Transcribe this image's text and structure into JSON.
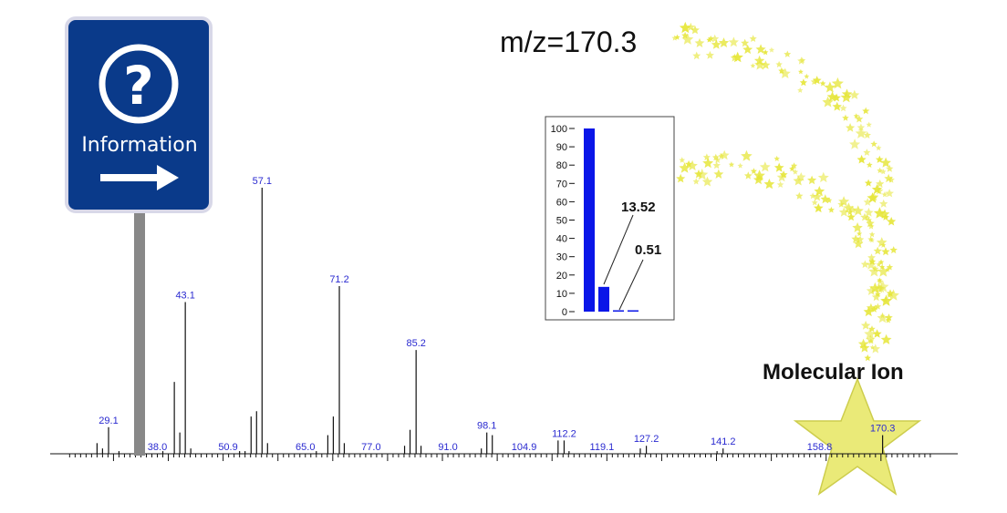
{
  "title": "m/z=170.3",
  "annotation": "Molecular Ion",
  "sign": {
    "text": "Information",
    "question_mark": "?"
  },
  "colors": {
    "peak": "#111111",
    "label": "#2a2ad0",
    "sign_bg": "#0a3a8a",
    "star": "#e6e63a",
    "inset_bar": "#0a16e8"
  },
  "chart_data": [
    {
      "type": "bar",
      "title": "",
      "xlabel": "",
      "ylabel": "",
      "xlim": [
        21,
        180
      ],
      "ylim": [
        0,
        100
      ],
      "peaks": [
        {
          "mz": 27.0,
          "intensity": 4
        },
        {
          "mz": 28.0,
          "intensity": 2
        },
        {
          "mz": 29.1,
          "intensity": 10,
          "label": "29.1"
        },
        {
          "mz": 31.0,
          "intensity": 1
        },
        {
          "mz": 39.0,
          "intensity": 1
        },
        {
          "mz": 41.1,
          "intensity": 27
        },
        {
          "mz": 42.1,
          "intensity": 8
        },
        {
          "mz": 43.1,
          "intensity": 57,
          "label": "43.1"
        },
        {
          "mz": 44.1,
          "intensity": 2
        },
        {
          "mz": 53.0,
          "intensity": 1
        },
        {
          "mz": 54.0,
          "intensity": 1
        },
        {
          "mz": 55.1,
          "intensity": 14
        },
        {
          "mz": 56.1,
          "intensity": 16
        },
        {
          "mz": 57.1,
          "intensity": 100,
          "label": "57.1"
        },
        {
          "mz": 58.1,
          "intensity": 4
        },
        {
          "mz": 67.0,
          "intensity": 1
        },
        {
          "mz": 69.1,
          "intensity": 7
        },
        {
          "mz": 70.1,
          "intensity": 14
        },
        {
          "mz": 71.2,
          "intensity": 63,
          "label": "71.2"
        },
        {
          "mz": 72.1,
          "intensity": 4
        },
        {
          "mz": 83.1,
          "intensity": 3
        },
        {
          "mz": 84.1,
          "intensity": 9
        },
        {
          "mz": 85.2,
          "intensity": 39,
          "label": "85.2"
        },
        {
          "mz": 86.1,
          "intensity": 3
        },
        {
          "mz": 97.1,
          "intensity": 2
        },
        {
          "mz": 98.1,
          "intensity": 8,
          "label": "98.1"
        },
        {
          "mz": 99.1,
          "intensity": 7
        },
        {
          "mz": 111.1,
          "intensity": 5
        },
        {
          "mz": 112.2,
          "intensity": 5,
          "label": "112.2"
        },
        {
          "mz": 113.1,
          "intensity": 1
        },
        {
          "mz": 126.1,
          "intensity": 2
        },
        {
          "mz": 127.2,
          "intensity": 3,
          "label": "127.2"
        },
        {
          "mz": 140.1,
          "intensity": 1
        },
        {
          "mz": 141.2,
          "intensity": 2,
          "label": "141.2"
        },
        {
          "mz": 170.3,
          "intensity": 7,
          "label": "170.3"
        }
      ],
      "tick_labels": [
        "38.0",
        "50.9",
        "65.0",
        "77.0",
        "91.0",
        "104.9",
        "119.1",
        "158.8"
      ],
      "tick_label_mz": [
        38.0,
        50.9,
        65.0,
        77.0,
        91.0,
        104.9,
        119.1,
        158.8
      ]
    },
    {
      "type": "bar",
      "title": "",
      "xlabel": "",
      "ylabel": "",
      "ylim": [
        0,
        100
      ],
      "yticks": [
        "0",
        "10",
        "20",
        "30",
        "40",
        "50",
        "60",
        "70",
        "80",
        "90",
        "100"
      ],
      "values": [
        100,
        13.52,
        0.51,
        0.2
      ],
      "data_labels": [
        "",
        "13.52",
        "0.51",
        ""
      ]
    }
  ]
}
